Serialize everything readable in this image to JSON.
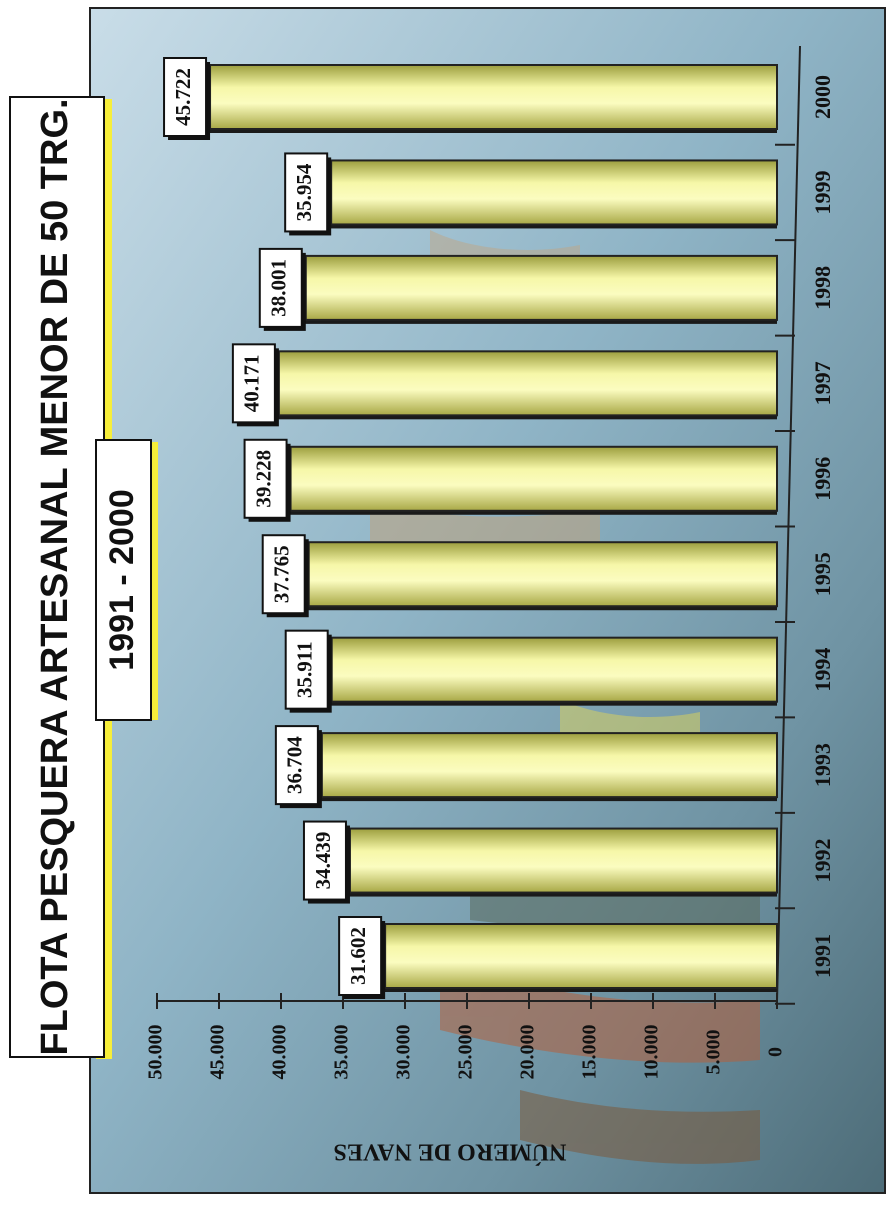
{
  "chart_data": {
    "type": "bar",
    "title": "FLOTA PESQUERA ARTESANAL MENOR DE 50 TRG.",
    "subtitle": "1991 - 2000",
    "ylabel": "NÚMERO DE NAVES",
    "xlabel": "",
    "ylim": [
      0,
      50000
    ],
    "y_ticks": [
      "0",
      "5.000",
      "10.000",
      "15.000",
      "20.000",
      "25.000",
      "30.000",
      "35.000",
      "40.000",
      "45.000",
      "50.000"
    ],
    "categories": [
      "1991",
      "1992",
      "1993",
      "1994",
      "1995",
      "1996",
      "1997",
      "1998",
      "1999",
      "2000"
    ],
    "values": [
      31602,
      34439,
      36704,
      35911,
      37765,
      39228,
      40171,
      38001,
      35954,
      45722
    ],
    "value_labels": [
      "31.602",
      "34.439",
      "36.704",
      "35.911",
      "37.765",
      "39.228",
      "40.171",
      "38.001",
      "35.954",
      "45.722"
    ],
    "orientation": "rotated-90-clockwise",
    "bar_color": "#e8ec8c",
    "grid": false,
    "legend": "none"
  }
}
